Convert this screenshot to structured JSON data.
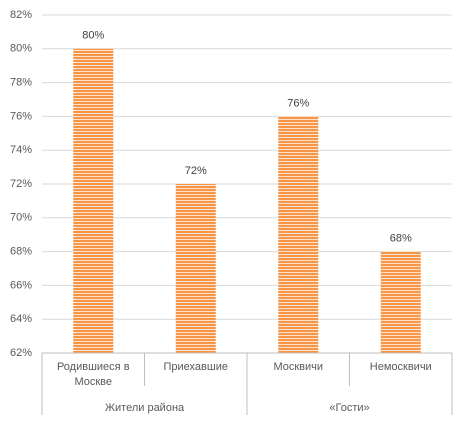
{
  "chart_data": {
    "type": "bar",
    "groups": [
      {
        "name": "Жители района",
        "categories": [
          "Родившиеся в Москве",
          "Приехавшие"
        ],
        "values": [
          80,
          72
        ],
        "value_labels": [
          "80%",
          "72%"
        ]
      },
      {
        "name": "«Гости»",
        "categories": [
          "Москвичи",
          "Немосквичи"
        ],
        "values": [
          76,
          68
        ],
        "value_labels": [
          "76%",
          "68%"
        ]
      }
    ],
    "color": "#f79646",
    "ylim": [
      62,
      82
    ],
    "yticks": [
      {
        "value": 62,
        "label": "62%"
      },
      {
        "value": 64,
        "label": "64%"
      },
      {
        "value": 66,
        "label": "66%"
      },
      {
        "value": 68,
        "label": "68%"
      },
      {
        "value": 70,
        "label": "70%"
      },
      {
        "value": 72,
        "label": "72%"
      },
      {
        "value": 74,
        "label": "74%"
      },
      {
        "value": 76,
        "label": "76%"
      },
      {
        "value": 78,
        "label": "78%"
      },
      {
        "value": 80,
        "label": "80%"
      },
      {
        "value": 82,
        "label": "82%"
      }
    ],
    "grid": true
  }
}
